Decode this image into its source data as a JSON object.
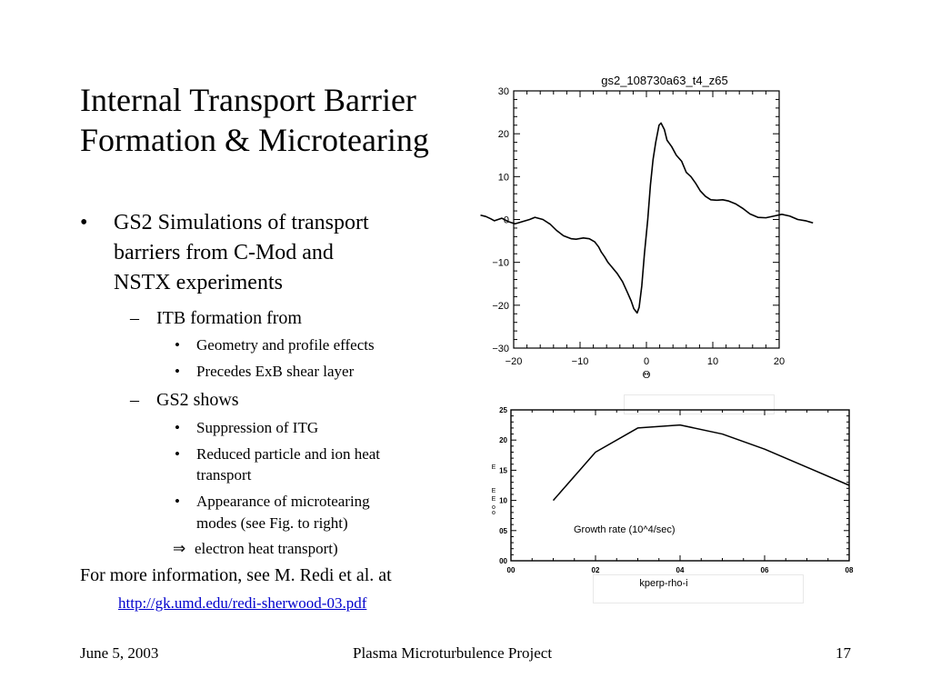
{
  "slide": {
    "title_lines": [
      "Internal Transport Barrier",
      "Formation & Microtearing"
    ],
    "bullet1": {
      "marker": "•",
      "lines": [
        "GS2 Simulations of transport",
        "barriers from C-Mod and",
        "NSTX experiments"
      ]
    },
    "sub1": {
      "marker": "–",
      "text": "ITB formation from"
    },
    "sub1_items": [
      "Geometry and profile effects",
      "Precedes ExB shear layer"
    ],
    "sub2": {
      "marker": "–",
      "text": "GS2 shows"
    },
    "sub2_items": [
      [
        "Suppression of ITG"
      ],
      [
        "Reduced particle and ion heat",
        "transport"
      ],
      [
        "Appearance of microtearing",
        "modes (see Fig. to right)"
      ]
    ],
    "arrow_item": {
      "marker": "⇒",
      "text": "electron heat transport)"
    },
    "more_info": "For more information, see M. Redi et al. at",
    "link": "http://gk.umd.edu/redi-sherwood-03.pdf",
    "sub_bullet_marker": "•"
  },
  "footer": {
    "date": "June 5, 2003",
    "project": "Plasma Microturbulence Project",
    "page": "17"
  },
  "chart_data": [
    {
      "type": "line",
      "title": "gs2_108730a63_t4_z65",
      "xlabel": "Θ",
      "ylabel": "",
      "xlim": [
        -20,
        20
      ],
      "ylim": [
        -30,
        30
      ],
      "x_ticks": [
        -20,
        -10,
        0,
        10,
        20
      ],
      "x_tick_labels": [
        "−20",
        "−10",
        "0",
        "10",
        "20"
      ],
      "y_ticks": [
        30,
        20,
        10,
        0,
        -10,
        -20,
        -30
      ],
      "y_tick_labels": [
        "30",
        "20",
        "10",
        "0",
        "−10",
        "−20",
        "−30"
      ],
      "series": [
        {
          "x": [
            -25,
            -24.2,
            -23.5,
            -22.9,
            -21.8,
            -20.8,
            -19.8,
            -18.7,
            -17.6,
            -16.8,
            -15.6,
            -14.5,
            -13.5,
            -12.5,
            -11.3,
            -10.6,
            -9.5,
            -8.6,
            -7.8,
            -7.2,
            -6.8,
            -6.3,
            -5.8,
            -5.1,
            -4.4,
            -3.6,
            -2.9,
            -2.3,
            -1.9,
            -1.4,
            -1.1,
            -0.7,
            -0.3,
            0.2,
            0.6,
            1.0,
            1.4,
            1.9,
            2.2,
            2.7,
            3.1,
            3.8,
            4.5,
            5.3,
            6.0,
            6.7,
            7.4,
            8.1,
            8.9,
            9.7,
            10.6,
            11.5,
            12.4,
            13.5,
            14.6,
            15.6,
            16.8,
            18.0,
            19.2,
            20.4,
            21.6,
            22.8,
            24.0,
            25.1
          ],
          "y": [
            1.0,
            0.7,
            0.2,
            -0.3,
            0.3,
            -0.5,
            -1.0,
            -0.5,
            0.0,
            0.5,
            0.0,
            -1.1,
            -2.6,
            -3.8,
            -4.5,
            -4.6,
            -4.3,
            -4.5,
            -5.2,
            -6.4,
            -7.6,
            -8.7,
            -10.0,
            -11.3,
            -12.6,
            -14.5,
            -16.9,
            -19.0,
            -20.8,
            -21.8,
            -20.5,
            -15.5,
            -8.0,
            0.0,
            8.0,
            14.0,
            18.0,
            22.0,
            22.5,
            21.0,
            18.5,
            17.0,
            15.0,
            13.6,
            11.0,
            10.0,
            8.5,
            6.7,
            5.4,
            4.6,
            4.5,
            4.6,
            4.3,
            3.6,
            2.5,
            1.3,
            0.5,
            0.4,
            0.8,
            1.2,
            0.8,
            0.0,
            -0.3,
            -0.8
          ]
        }
      ]
    },
    {
      "type": "line",
      "title": "",
      "xlabel": "kperp-rho-i",
      "ylabel": "",
      "annotation": "Growth rate (10^4/sec)",
      "xlim": [
        0,
        0.8
      ],
      "ylim": [
        0,
        2.5
      ],
      "x_tick_labels": [
        "00",
        "02",
        "04",
        "06",
        "08"
      ],
      "y_tick_labels": [
        "25",
        "20",
        "15",
        "10",
        "05",
        "00"
      ],
      "axis_glyphs": [
        "E",
        "E",
        "E",
        "o",
        "o"
      ],
      "series": [
        {
          "x": [
            0.1,
            0.2,
            0.3,
            0.4,
            0.5,
            0.6,
            0.7,
            0.8
          ],
          "y": [
            1.0,
            1.8,
            2.2,
            2.25,
            2.1,
            1.85,
            1.55,
            1.25
          ]
        }
      ]
    }
  ],
  "colors": {
    "text": "#000000",
    "link": "#0000cc",
    "background": "#ffffff"
  }
}
